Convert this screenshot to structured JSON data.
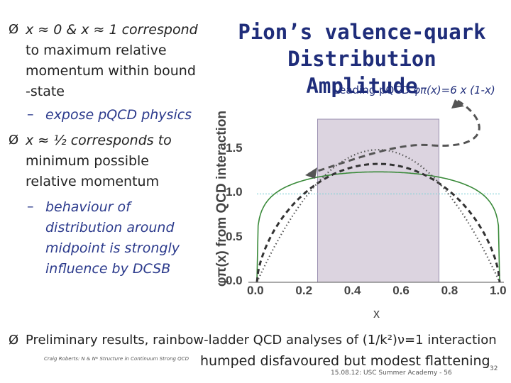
{
  "bullets": [
    {
      "lines": [
        "x ≈ 0 & x ≈ 1 correspond",
        "to maximum relative",
        "momentum within bound",
        "-state"
      ],
      "sub": [
        "expose pQCD physics"
      ]
    },
    {
      "lines": [
        "x ≈ ½ corresponds to",
        "minimum possible",
        "relative momentum"
      ],
      "sub": [
        "behaviour of",
        "distribution around",
        "midpoint is strongly",
        "influence by DCSB"
      ]
    }
  ],
  "bullet_marker": "Ø",
  "sub_marker": "–",
  "title_lines": [
    "Pion’s valence-quark",
    "Distribution Amplitude"
  ],
  "formula": {
    "prefix": "Leading pQCD ",
    "expr": "φπ(x)=6 x (1-x)"
  },
  "chart_data": {
    "type": "line",
    "xlabel": "x",
    "ylabel": "φπ(x) from QCD interaction",
    "x_ticks": [
      "0.0",
      "0.2",
      "0.4",
      "0.6",
      "0.8",
      "1.0"
    ],
    "y_ticks": [
      "0.0",
      "0.5",
      "1.0",
      "1.5"
    ],
    "xlim": [
      0,
      1
    ],
    "ylim": [
      0,
      1.75
    ],
    "shaded_region": [
      0.25,
      0.75
    ],
    "reference_line": 1.0,
    "series": [
      {
        "style": "green-solid",
        "color": "#3a8a3a",
        "exp": 0.17,
        "norm": 1.25
      },
      {
        "style": "black-dashed",
        "color": "#333333",
        "exp": 0.62,
        "norm": 1.34
      },
      {
        "style": "dotted-pQCD",
        "color": "#555555",
        "exp": 1.0,
        "norm": 1.5
      }
    ]
  },
  "preliminary": {
    "text": "Preliminary results, rainbow-ladder QCD analyses of (1/k²)ν=1 interaction",
    "line2": "humped disfavoured but modest flattening"
  },
  "footer": {
    "left": "Craig Roberts: N & N* Structure in Continuum Strong QCD",
    "date": "15.08.12: USC Summer Academy - 56",
    "page": "32"
  }
}
